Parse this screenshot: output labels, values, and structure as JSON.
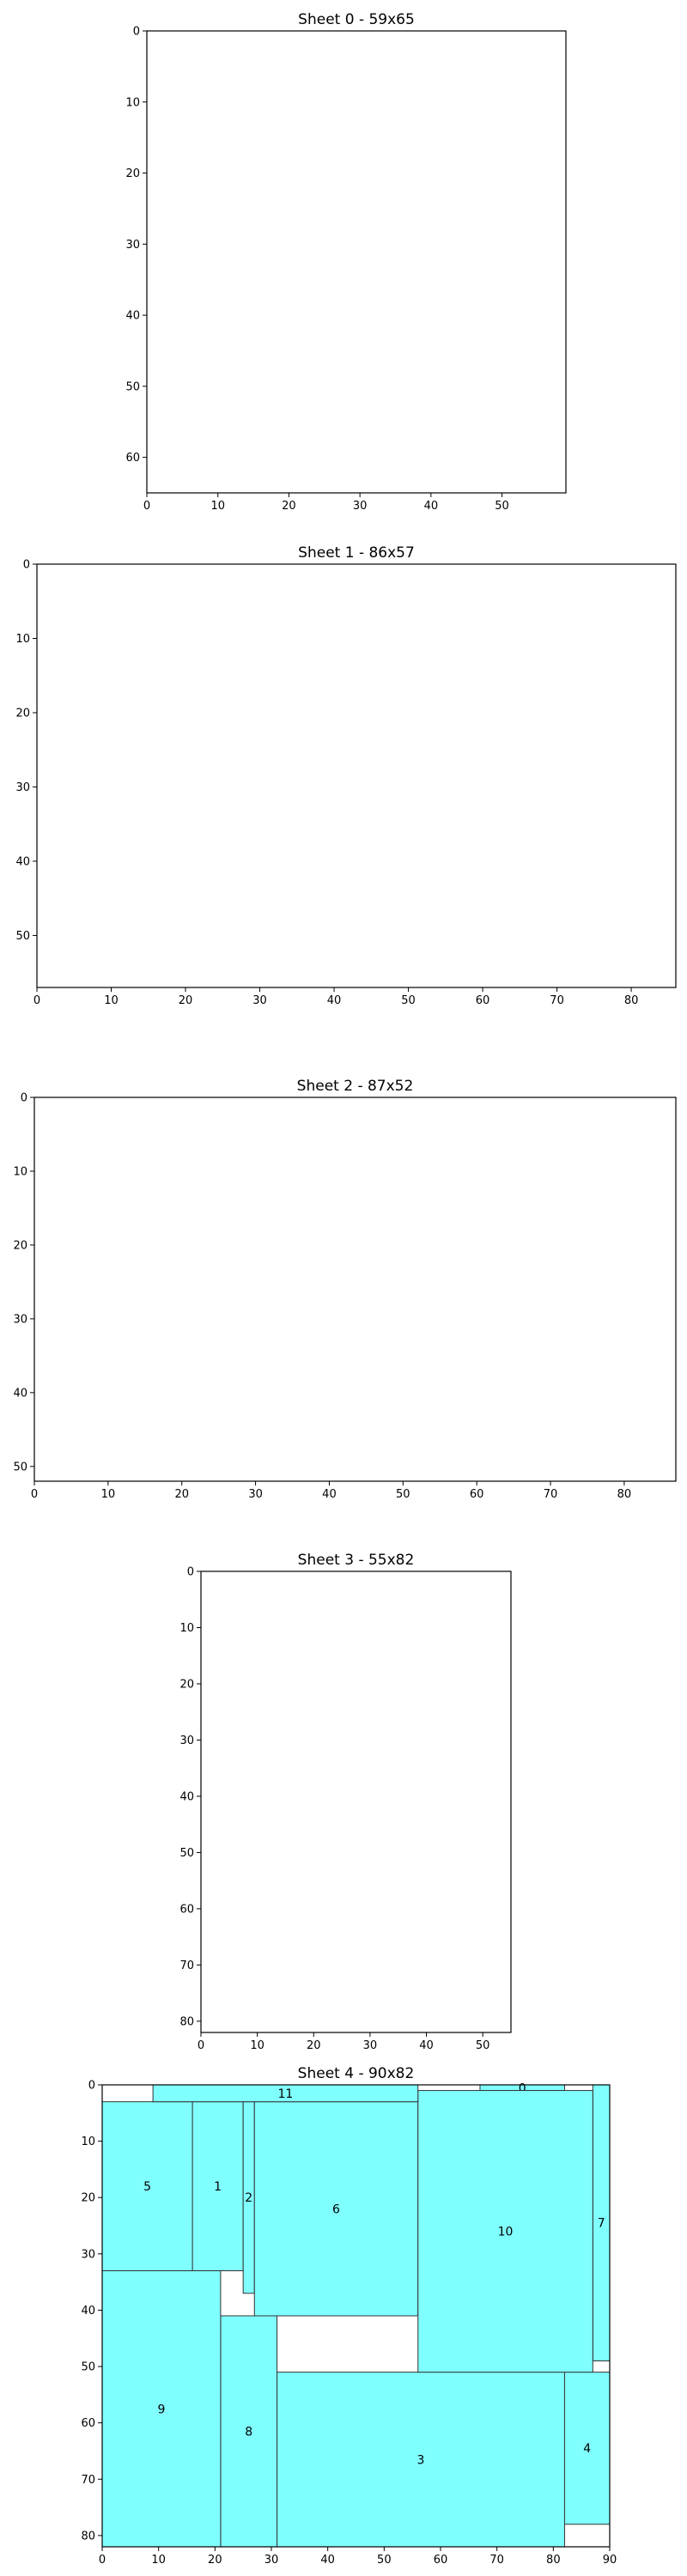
{
  "chart_data": [
    {
      "type": "rectangle-packing",
      "title": "Sheet 0 - 59x65",
      "sheet_width": 59,
      "sheet_height": 65,
      "xlim": [
        0,
        59
      ],
      "ylim": [
        0,
        65
      ],
      "y_inverted": true,
      "xticks": [
        0,
        10,
        20,
        30,
        40,
        50
      ],
      "yticks": [
        0,
        10,
        20,
        30,
        40,
        50,
        60
      ],
      "pieces": []
    },
    {
      "type": "rectangle-packing",
      "title": "Sheet 1 - 86x57",
      "sheet_width": 86,
      "sheet_height": 57,
      "xlim": [
        0,
        86
      ],
      "ylim": [
        0,
        57
      ],
      "y_inverted": true,
      "xticks": [
        0,
        10,
        20,
        30,
        40,
        50,
        60,
        70,
        80
      ],
      "yticks": [
        0,
        10,
        20,
        30,
        40,
        50
      ],
      "pieces": []
    },
    {
      "type": "rectangle-packing",
      "title": "Sheet 2 - 87x52",
      "sheet_width": 87,
      "sheet_height": 52,
      "xlim": [
        0,
        87
      ],
      "ylim": [
        0,
        52
      ],
      "y_inverted": true,
      "xticks": [
        0,
        10,
        20,
        30,
        40,
        50,
        60,
        70,
        80
      ],
      "yticks": [
        0,
        10,
        20,
        30,
        40,
        50
      ],
      "pieces": []
    },
    {
      "type": "rectangle-packing",
      "title": "Sheet 3 - 55x82",
      "sheet_width": 55,
      "sheet_height": 82,
      "xlim": [
        0,
        55
      ],
      "ylim": [
        0,
        82
      ],
      "y_inverted": true,
      "xticks": [
        0,
        10,
        20,
        30,
        40,
        50
      ],
      "yticks": [
        0,
        10,
        20,
        30,
        40,
        50,
        60,
        70,
        80
      ],
      "pieces": []
    },
    {
      "type": "rectangle-packing",
      "title": "Sheet 4 - 90x82",
      "sheet_width": 90,
      "sheet_height": 82,
      "xlim": [
        0,
        90
      ],
      "ylim": [
        0,
        82
      ],
      "y_inverted": true,
      "xticks": [
        0,
        10,
        20,
        30,
        40,
        50,
        60,
        70,
        80,
        90
      ],
      "yticks": [
        0,
        10,
        20,
        30,
        40,
        50,
        60,
        70,
        80
      ],
      "fill_color": "#80ffff",
      "pieces": [
        {
          "id": "0",
          "x": 67,
          "y": 0,
          "w": 15,
          "h": 1
        },
        {
          "id": "1",
          "x": 16,
          "y": 3,
          "w": 9,
          "h": 30
        },
        {
          "id": "2",
          "x": 25,
          "y": 3,
          "w": 2,
          "h": 34
        },
        {
          "id": "3",
          "x": 31,
          "y": 51,
          "w": 51,
          "h": 31
        },
        {
          "id": "4",
          "x": 82,
          "y": 51,
          "w": 8,
          "h": 27
        },
        {
          "id": "5",
          "x": 0,
          "y": 3,
          "w": 16,
          "h": 30
        },
        {
          "id": "6",
          "x": 27,
          "y": 3,
          "w": 29,
          "h": 38
        },
        {
          "id": "7",
          "x": 87,
          "y": 0,
          "w": 3,
          "h": 49
        },
        {
          "id": "8",
          "x": 21,
          "y": 41,
          "w": 10,
          "h": 41
        },
        {
          "id": "9",
          "x": 0,
          "y": 33,
          "w": 21,
          "h": 49
        },
        {
          "id": "10",
          "x": 56,
          "y": 1,
          "w": 31,
          "h": 50
        },
        {
          "id": "11",
          "x": 9,
          "y": 0,
          "w": 47,
          "h": 3
        }
      ]
    }
  ]
}
